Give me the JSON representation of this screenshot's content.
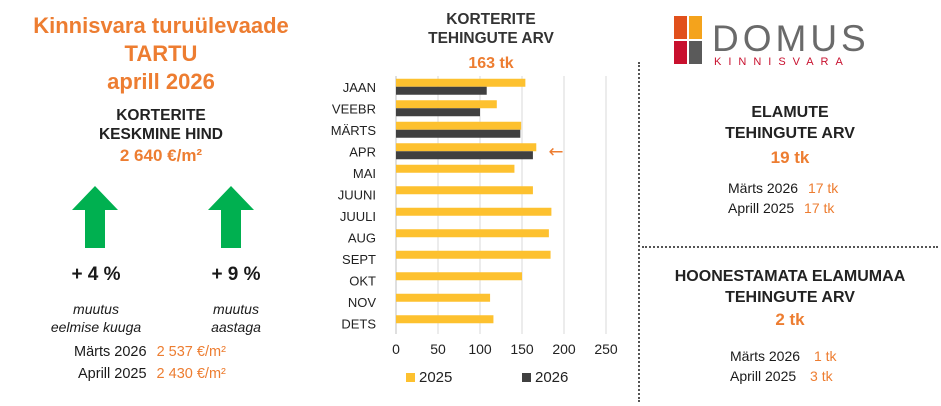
{
  "left": {
    "title_lines": [
      "Kinnisvara turuülevaade",
      "TARTU",
      "aprill 2026"
    ],
    "avg_heading_lines": [
      "KORTERITE",
      "KESKMINE HIND"
    ],
    "avg_value": "2 640 €/m²",
    "month_change": {
      "value": "+ 4 %",
      "label_lines": [
        "muutus",
        "eelmise kuuga"
      ]
    },
    "year_change": {
      "value": "+ 9 %",
      "label_lines": [
        "muutus",
        "aastaga"
      ]
    },
    "comparisons": [
      {
        "label": "Märts 2026",
        "value": "2 537 €/m²"
      },
      {
        "label": "Aprill 2025",
        "value": "2 430 €/m²"
      }
    ]
  },
  "chart_header": {
    "title_lines": [
      "KORTERITE",
      "TEHINGUTE ARV"
    ],
    "total": "163 tk"
  },
  "chart_data": {
    "type": "bar",
    "orientation": "horizontal",
    "categories": [
      "JAAN",
      "VEEBR",
      "MÄRTS",
      "APR",
      "MAI",
      "JUUNI",
      "JUULI",
      "AUG",
      "SEPT",
      "OKT",
      "NOV",
      "DETS"
    ],
    "series": [
      {
        "name": "2025",
        "color": "#fdc12f",
        "values": [
          154,
          120,
          149,
          167,
          141,
          163,
          185,
          182,
          184,
          150,
          112,
          116
        ]
      },
      {
        "name": "2026",
        "color": "#404040",
        "values": [
          108,
          100,
          148,
          163,
          null,
          null,
          null,
          null,
          null,
          null,
          null,
          null
        ]
      }
    ],
    "xlim": [
      0,
      250
    ],
    "xticks": [
      0,
      50,
      100,
      150,
      200,
      250
    ],
    "grid": true,
    "legend": "bottom",
    "highlight": {
      "category": "APR",
      "marker": "←",
      "color": "#ed7d31"
    }
  },
  "logo": {
    "brand": "DOMUS",
    "sub": "KINNISVARA"
  },
  "houses": {
    "heading_lines": [
      "ELAMUTE",
      "TEHINGUTE ARV"
    ],
    "value": "19 tk",
    "rows": [
      {
        "label": "Märts 2026",
        "value": "17 tk"
      },
      {
        "label": "Aprill 2025",
        "value": "17 tk"
      }
    ]
  },
  "land": {
    "heading_lines": [
      "HOONESTAMATA ELAMUMAA",
      "TEHINGUTE ARV"
    ],
    "value": "2 tk",
    "rows": [
      {
        "label": "Märts 2026",
        "value": "1 tk"
      },
      {
        "label": "Aprill 2025",
        "value": "3 tk"
      }
    ]
  },
  "colors": {
    "accent": "#ed7d31",
    "arrow_green": "#00b050",
    "bar_2025": "#fdc12f",
    "bar_2026": "#404040"
  }
}
